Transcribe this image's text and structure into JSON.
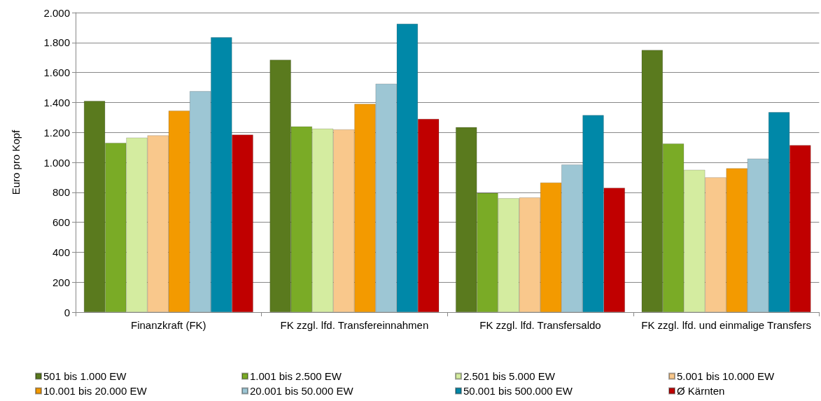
{
  "chart_data": {
    "type": "bar",
    "ylabel": "Euro pro Kopf",
    "categories": [
      "Finanzkraft (FK)",
      "FK zzgl. lfd. Transfereinnahmen",
      "FK zzgl. lfd. Transfersaldo",
      "FK zzgl. lfd. und einmalige Transfers"
    ],
    "series": [
      {
        "name": "501 bis 1.000 EW",
        "color": "#5a7a1e",
        "values": [
          1410,
          1685,
          1235,
          1750
        ]
      },
      {
        "name": "1.001 bis 2.500 EW",
        "color": "#7aab26",
        "values": [
          1130,
          1240,
          795,
          1125
        ]
      },
      {
        "name": "2.501 bis 5.000 EW",
        "color": "#d4eca0",
        "values": [
          1165,
          1225,
          760,
          950
        ]
      },
      {
        "name": "5.001 bis 10.000 EW",
        "color": "#f9c88c",
        "values": [
          1180,
          1220,
          765,
          900
        ]
      },
      {
        "name": "10.001 bis 20.000 EW",
        "color": "#f39a00",
        "values": [
          1345,
          1390,
          865,
          960
        ]
      },
      {
        "name": "20.001 bis 50.000 EW",
        "color": "#9dc6d4",
        "values": [
          1475,
          1525,
          985,
          1025
        ]
      },
      {
        "name": "50.001 bis 500.000 EW",
        "color": "#0088a8",
        "values": [
          1835,
          1925,
          1315,
          1335
        ]
      },
      {
        "name": "Ø Kärnten",
        "color": "#c00000",
        "values": [
          1185,
          1290,
          830,
          1115
        ]
      }
    ],
    "ylim": [
      0,
      2000
    ],
    "yticks": [
      0,
      200,
      400,
      600,
      800,
      {
        "value": 1000,
        "label": "1.000"
      },
      {
        "value": 1200,
        "label": "1.200"
      },
      {
        "value": 1400,
        "label": "1.400"
      },
      {
        "value": 1600,
        "label": "1.600"
      },
      {
        "value": 1800,
        "label": "1.800"
      },
      {
        "value": 2000,
        "label": "2.000"
      }
    ],
    "grid": "y",
    "legend": "bottom",
    "marker": "square"
  }
}
